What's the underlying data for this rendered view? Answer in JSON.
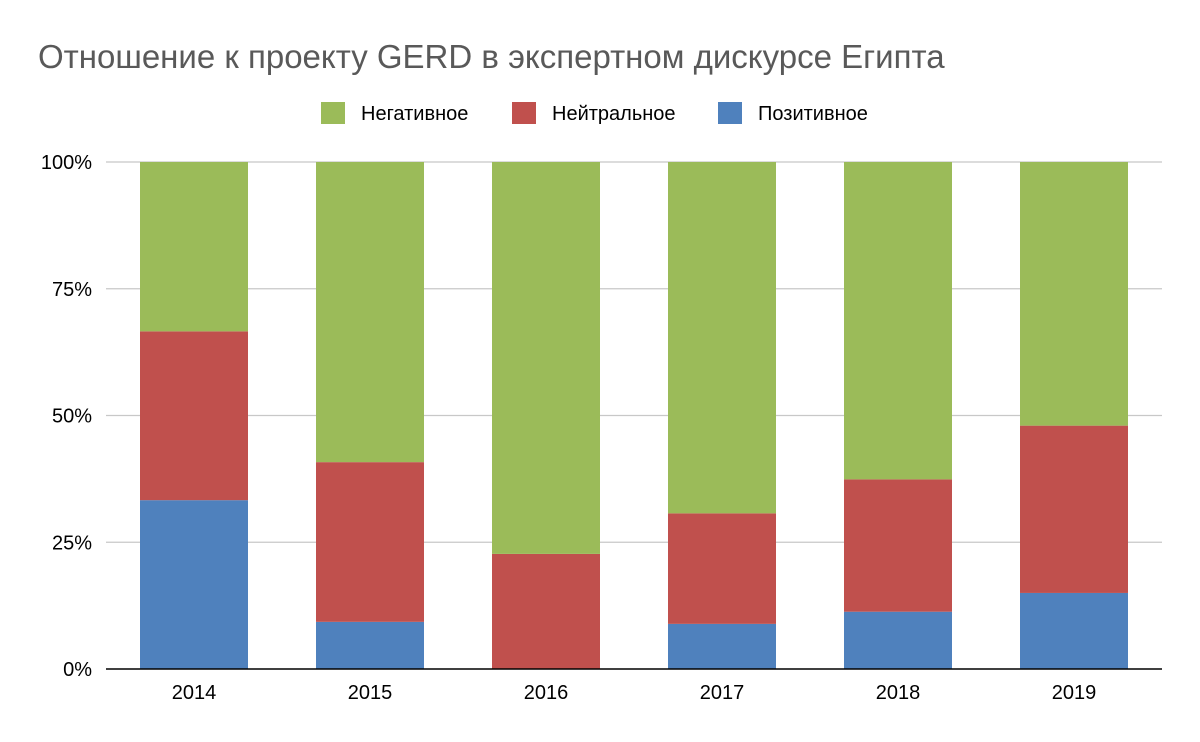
{
  "chart_data": {
    "type": "bar",
    "stacked": true,
    "title": "Отношение к проекту GERD в экспертном дискурсе Египта",
    "categories": [
      "2014",
      "2015",
      "2016",
      "2017",
      "2018",
      "2019"
    ],
    "series": [
      {
        "name": "Позитивное",
        "color": "#4f81bd",
        "values": [
          33.3,
          9.3,
          0,
          8.9,
          11.3,
          15
        ]
      },
      {
        "name": "Нейтральное",
        "color": "#c0504d",
        "values": [
          33.3,
          31.5,
          22.7,
          21.8,
          26.1,
          33
        ]
      },
      {
        "name": "Негативное",
        "color": "#9bbb59",
        "values": [
          33.4,
          59.2,
          77.3,
          69.3,
          62.6,
          52
        ]
      }
    ],
    "legend_order": [
      "Негативное",
      "Нейтральное",
      "Позитивное"
    ],
    "legend_position": "top",
    "yticks": [
      "0%",
      "25%",
      "50%",
      "75%",
      "100%"
    ],
    "ytick_values": [
      0,
      25,
      50,
      75,
      100
    ],
    "ylim": [
      0,
      100
    ],
    "grid": true
  }
}
